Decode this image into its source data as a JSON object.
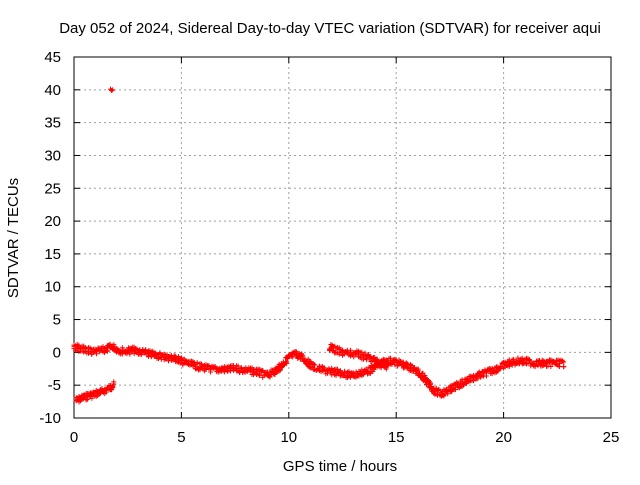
{
  "chart_data": {
    "type": "scatter",
    "title": "Day 052 of 2024, Sidereal Day-to-day VTEC variation (SDTVAR) for receiver aqui",
    "xlabel": "GPS time / hours",
    "ylabel": "SDTVAR / TECUs",
    "xlim": [
      0,
      25
    ],
    "ylim": [
      -10,
      45
    ],
    "xticks": [
      0,
      5,
      10,
      15,
      20,
      25
    ],
    "yticks": [
      -10,
      -5,
      0,
      5,
      10,
      15,
      20,
      25,
      30,
      35,
      40,
      45
    ],
    "grid": true,
    "marker": "+",
    "series_color": "#ff0000",
    "series": [
      {
        "name": "outlier",
        "x": [
          1.7,
          1.75,
          1.8
        ],
        "y": [
          40.1,
          39.9,
          40.0
        ]
      },
      {
        "name": "track-low-early",
        "x": [
          0.1,
          0.3,
          0.5,
          0.7,
          0.9,
          1.1,
          1.3,
          1.5,
          1.7,
          1.85
        ],
        "y": [
          -7.3,
          -7.1,
          -6.8,
          -6.6,
          -6.4,
          -6.2,
          -6.0,
          -5.7,
          -5.3,
          -5.0
        ]
      },
      {
        "name": "track-main",
        "x": [
          0.0,
          0.3,
          0.6,
          0.9,
          1.2,
          1.5,
          1.8,
          2.1,
          2.4,
          2.8,
          3.2,
          3.6,
          4.0,
          4.4,
          4.8,
          5.2,
          5.6,
          6.0,
          6.5,
          7.0,
          7.5,
          8.0,
          8.5,
          9.0,
          9.3,
          9.6,
          9.8,
          10.0,
          10.3,
          10.6,
          10.9,
          11.2,
          11.5,
          11.8,
          12.2,
          12.6,
          13.0,
          13.4,
          13.8,
          14.2,
          14.6,
          15.0,
          15.4,
          15.8,
          16.2,
          16.5,
          16.8,
          17.1,
          17.4,
          17.7,
          18.0,
          18.4,
          18.8,
          19.2,
          19.6,
          20.0,
          20.4,
          20.8,
          21.2,
          21.6,
          22.0,
          22.4,
          22.8
        ],
        "y": [
          0.8,
          0.6,
          0.3,
          0.0,
          0.2,
          0.5,
          0.9,
          0.3,
          0.2,
          0.3,
          0.0,
          -0.3,
          -0.5,
          -0.8,
          -1.0,
          -1.6,
          -2.0,
          -2.3,
          -2.6,
          -2.6,
          -2.5,
          -2.7,
          -3.0,
          -3.5,
          -3.0,
          -2.2,
          -1.5,
          -0.8,
          -0.3,
          -0.7,
          -1.6,
          -2.3,
          -2.6,
          -2.9,
          -3.0,
          -3.3,
          -3.5,
          -3.1,
          -2.7,
          -1.8,
          -1.3,
          -1.5,
          -2.0,
          -2.5,
          -3.5,
          -4.8,
          -5.9,
          -6.3,
          -5.9,
          -5.3,
          -4.8,
          -4.1,
          -3.6,
          -3.1,
          -2.6,
          -2.0,
          -1.5,
          -1.3,
          -1.5,
          -1.7,
          -1.7,
          -1.6,
          -1.7
        ]
      },
      {
        "name": "track-secondary",
        "x": [
          11.9,
          12.2,
          12.5,
          12.8,
          13.1,
          13.4,
          13.7,
          14.0,
          14.3,
          14.6
        ],
        "y": [
          0.8,
          0.3,
          0.0,
          -0.2,
          -0.2,
          -0.5,
          -0.8,
          -1.2,
          -1.8,
          -2.3
        ]
      }
    ]
  }
}
